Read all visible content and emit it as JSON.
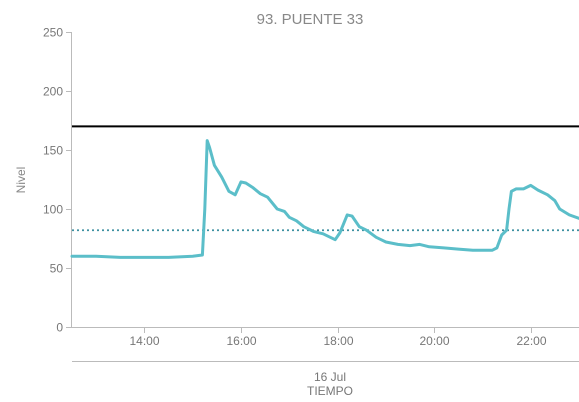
{
  "chart_data": {
    "type": "line",
    "title": "93. PUENTE 33",
    "ylabel": "Nivel",
    "xlabel": "TIEMPO",
    "x_date_label": "16 Jul",
    "ylim": [
      0,
      250
    ],
    "yticks": [
      0,
      50,
      100,
      150,
      200,
      250
    ],
    "x_range_hours": [
      12.5,
      23.0
    ],
    "xticks": [
      {
        "value": 14,
        "label": "14:00"
      },
      {
        "value": 16,
        "label": "16:00"
      },
      {
        "value": 18,
        "label": "18:00"
      },
      {
        "value": 20,
        "label": "20:00"
      },
      {
        "value": 22,
        "label": "22:00"
      }
    ],
    "grid": false,
    "reference_lines": [
      {
        "y": 170,
        "style": "solid",
        "color": "#000000"
      },
      {
        "y": 82,
        "style": "dotted",
        "color": "#3c8fa0"
      }
    ],
    "series": [
      {
        "color": "#5bbec9",
        "x": [
          12.5,
          13.0,
          13.5,
          14.0,
          14.5,
          15.0,
          15.2,
          15.25,
          15.3,
          15.35,
          15.45,
          15.6,
          15.75,
          15.88,
          16.0,
          16.1,
          16.25,
          16.4,
          16.55,
          16.75,
          16.9,
          17.0,
          17.15,
          17.3,
          17.5,
          17.7,
          17.85,
          17.95,
          18.05,
          18.2,
          18.3,
          18.45,
          18.6,
          18.8,
          19.0,
          19.25,
          19.5,
          19.7,
          19.9,
          20.2,
          20.5,
          20.8,
          21.0,
          21.2,
          21.3,
          21.4,
          21.5,
          21.55,
          21.6,
          21.7,
          21.85,
          22.0,
          22.15,
          22.35,
          22.5,
          22.6,
          22.8,
          23.0
        ],
        "y": [
          60,
          60,
          59,
          59,
          59,
          60,
          61,
          100,
          158,
          152,
          137,
          127,
          115,
          112,
          123,
          122,
          118,
          113,
          110,
          100,
          98,
          93,
          90,
          85,
          81,
          79,
          76,
          74,
          80,
          95,
          94,
          85,
          82,
          76,
          72,
          70,
          69,
          70,
          68,
          67,
          66,
          65,
          65,
          65,
          67,
          78,
          82,
          100,
          115,
          117,
          117,
          120,
          116,
          112,
          107,
          100,
          95,
          92
        ]
      }
    ]
  }
}
